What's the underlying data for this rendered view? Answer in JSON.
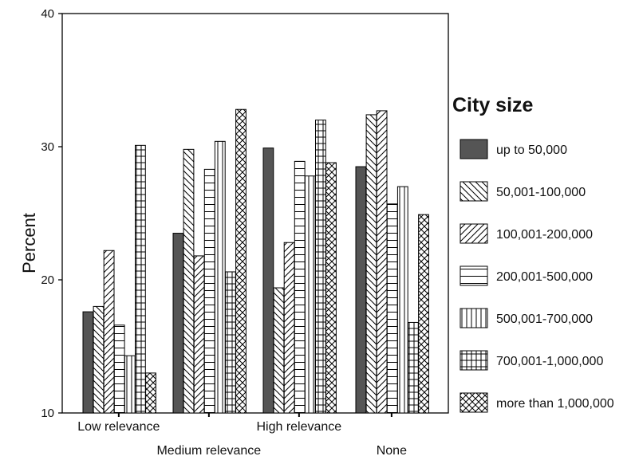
{
  "chart_data": {
    "type": "bar",
    "title": "",
    "xlabel": "",
    "ylabel": "Percent",
    "ylim": [
      10,
      40
    ],
    "yticks": [
      10,
      20,
      30,
      40
    ],
    "categories": [
      "Low relevance",
      "Medium relevance",
      "High relevance",
      "None"
    ],
    "legend_title": "City size",
    "legend_position": "right",
    "grid": false,
    "series": [
      {
        "name": "up to 50,000",
        "pattern": "solid",
        "values": [
          17.6,
          23.5,
          29.9,
          28.5
        ]
      },
      {
        "name": "50,001-100,000",
        "pattern": "backslash",
        "values": [
          18.0,
          29.8,
          19.4,
          32.4
        ]
      },
      {
        "name": "100,001-200,000",
        "pattern": "slash",
        "values": [
          22.2,
          21.8,
          22.8,
          32.7
        ]
      },
      {
        "name": "200,001-500,000",
        "pattern": "horizontal",
        "values": [
          16.6,
          28.3,
          28.9,
          25.7
        ]
      },
      {
        "name": "500,001-700,000",
        "pattern": "vertical",
        "values": [
          14.3,
          30.4,
          27.8,
          27.0
        ]
      },
      {
        "name": "700,001-1,000,000",
        "pattern": "grid",
        "values": [
          30.1,
          20.6,
          32.0,
          16.8
        ]
      },
      {
        "name": "more than 1,000,000",
        "pattern": "crosshatch",
        "values": [
          13.0,
          32.8,
          28.8,
          24.9
        ]
      }
    ]
  }
}
